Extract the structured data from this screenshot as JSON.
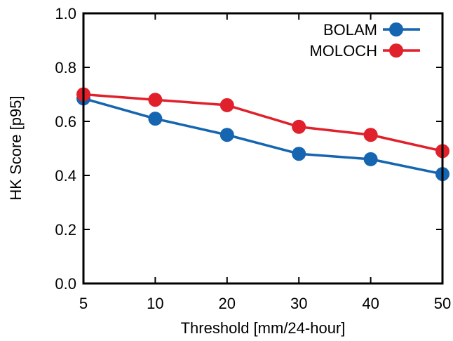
{
  "chart_data": {
    "type": "line",
    "title": "",
    "xlabel": "Threshold [mm/24-hour]",
    "ylabel": "HK Score [p95]",
    "categories": [
      "5",
      "10",
      "20",
      "30",
      "40",
      "50"
    ],
    "ylim": [
      0.0,
      1.0
    ],
    "yticks": [
      "0.0",
      "0.2",
      "0.4",
      "0.6",
      "0.8",
      "1.0"
    ],
    "yticks_values": [
      0.0,
      0.2,
      0.4,
      0.6,
      0.8,
      1.0
    ],
    "grid": false,
    "legend_position": "top-right",
    "series": [
      {
        "name": "BOLAM",
        "color": "#1565b0",
        "values": [
          0.685,
          0.61,
          0.55,
          0.48,
          0.46,
          0.405
        ]
      },
      {
        "name": "MOLOCH",
        "color": "#e0202a",
        "values": [
          0.7,
          0.68,
          0.66,
          0.58,
          0.55,
          0.49
        ]
      }
    ]
  }
}
